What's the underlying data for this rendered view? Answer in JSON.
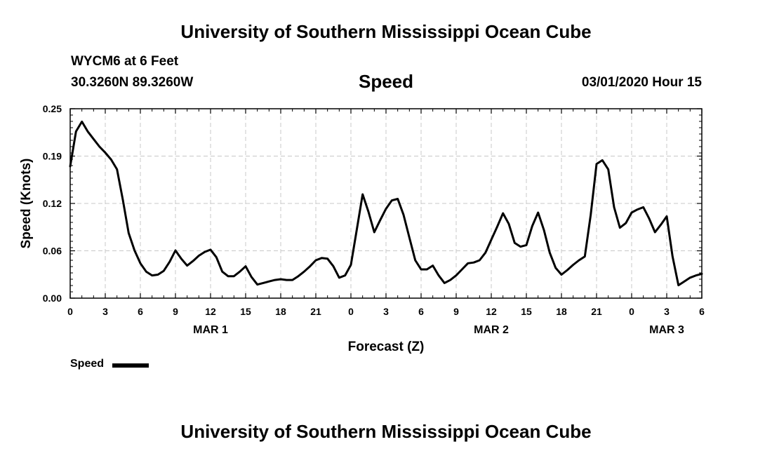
{
  "header": {
    "title": "University of Southern Mississippi Ocean Cube",
    "station": "WYCM6 at 6 Feet",
    "coords": "30.3260N 89.3260W",
    "timestamp": "03/01/2020 Hour 15"
  },
  "footer": {
    "title": "University of Southern Mississippi Ocean Cube"
  },
  "chart_data": {
    "type": "line",
    "title": "Speed",
    "xlabel": "Forecast (Z)",
    "ylabel": "Speed (Knots)",
    "x_unit": "hours",
    "xlim": [
      0,
      54
    ],
    "ylim": [
      0,
      0.25
    ],
    "y_ticks": [
      "0.00",
      "0.06",
      "0.12",
      "0.19",
      "0.25"
    ],
    "y_tick_values": [
      0,
      0.0625,
      0.125,
      0.1875,
      0.25
    ],
    "x_ticks": [
      {
        "x": 0,
        "label": "0"
      },
      {
        "x": 3,
        "label": "3"
      },
      {
        "x": 6,
        "label": "6"
      },
      {
        "x": 9,
        "label": "9"
      },
      {
        "x": 12,
        "label": "12"
      },
      {
        "x": 15,
        "label": "15"
      },
      {
        "x": 18,
        "label": "18"
      },
      {
        "x": 21,
        "label": "21"
      },
      {
        "x": 24,
        "label": "0"
      },
      {
        "x": 27,
        "label": "3"
      },
      {
        "x": 30,
        "label": "6"
      },
      {
        "x": 33,
        "label": "9"
      },
      {
        "x": 36,
        "label": "12"
      },
      {
        "x": 39,
        "label": "15"
      },
      {
        "x": 42,
        "label": "18"
      },
      {
        "x": 45,
        "label": "21"
      },
      {
        "x": 48,
        "label": "0"
      },
      {
        "x": 51,
        "label": "3"
      },
      {
        "x": 54,
        "label": "6"
      }
    ],
    "day_labels": [
      {
        "x": 12,
        "label": "MAR 1"
      },
      {
        "x": 36,
        "label": "MAR 2"
      },
      {
        "x": 51,
        "label": "MAR 3"
      }
    ],
    "grid": true,
    "legend": "bottom-left",
    "series": [
      {
        "name": "Speed",
        "color": "#000000",
        "x": [
          0,
          0.5,
          1,
          1.5,
          2,
          2.5,
          3,
          3.5,
          4,
          4.5,
          5,
          5.5,
          6,
          6.5,
          7,
          7.5,
          8,
          8.5,
          9,
          9.5,
          10,
          10.5,
          11,
          11.5,
          12,
          12.5,
          13,
          13.5,
          14,
          14.5,
          15,
          15.5,
          16,
          16.5,
          17,
          17.5,
          18,
          18.5,
          19,
          19.5,
          20,
          20.5,
          21,
          21.5,
          22,
          22.5,
          23,
          23.5,
          24,
          24.5,
          25,
          25.5,
          26,
          26.5,
          27,
          27.5,
          28,
          28.5,
          29,
          29.5,
          30,
          30.5,
          31,
          31.5,
          32,
          32.5,
          33,
          33.5,
          34,
          34.5,
          35,
          35.5,
          36,
          36.5,
          37,
          37.5,
          38,
          38.5,
          39,
          39.5,
          40,
          40.5,
          41,
          41.5,
          42,
          42.5,
          43,
          43.5,
          44,
          44.5,
          45,
          45.5,
          46,
          46.5,
          47,
          47.5,
          48,
          48.5,
          49,
          49.5,
          50,
          50.5,
          51,
          51.5,
          52,
          52.5,
          53,
          53.5,
          54
        ],
        "values": [
          0.174,
          0.22,
          0.233,
          0.22,
          0.21,
          0.2,
          0.192,
          0.183,
          0.17,
          0.13,
          0.086,
          0.063,
          0.046,
          0.035,
          0.03,
          0.031,
          0.036,
          0.048,
          0.063,
          0.052,
          0.043,
          0.049,
          0.056,
          0.061,
          0.064,
          0.054,
          0.035,
          0.029,
          0.029,
          0.035,
          0.042,
          0.028,
          0.018,
          0.02,
          0.022,
          0.024,
          0.025,
          0.024,
          0.024,
          0.029,
          0.035,
          0.042,
          0.05,
          0.053,
          0.052,
          0.042,
          0.027,
          0.03,
          0.044,
          0.09,
          0.137,
          0.114,
          0.087,
          0.103,
          0.118,
          0.129,
          0.131,
          0.11,
          0.08,
          0.05,
          0.038,
          0.038,
          0.043,
          0.03,
          0.02,
          0.024,
          0.03,
          0.038,
          0.046,
          0.047,
          0.05,
          0.06,
          0.077,
          0.094,
          0.112,
          0.098,
          0.073,
          0.068,
          0.07,
          0.095,
          0.113,
          0.09,
          0.06,
          0.04,
          0.031,
          0.037,
          0.044,
          0.05,
          0.055,
          0.11,
          0.177,
          0.182,
          0.17,
          0.12,
          0.093,
          0.099,
          0.113,
          0.117,
          0.12,
          0.105,
          0.087,
          0.097,
          0.108,
          0.055,
          0.017,
          0.022,
          0.027,
          0.03,
          0.032
        ]
      }
    ]
  }
}
